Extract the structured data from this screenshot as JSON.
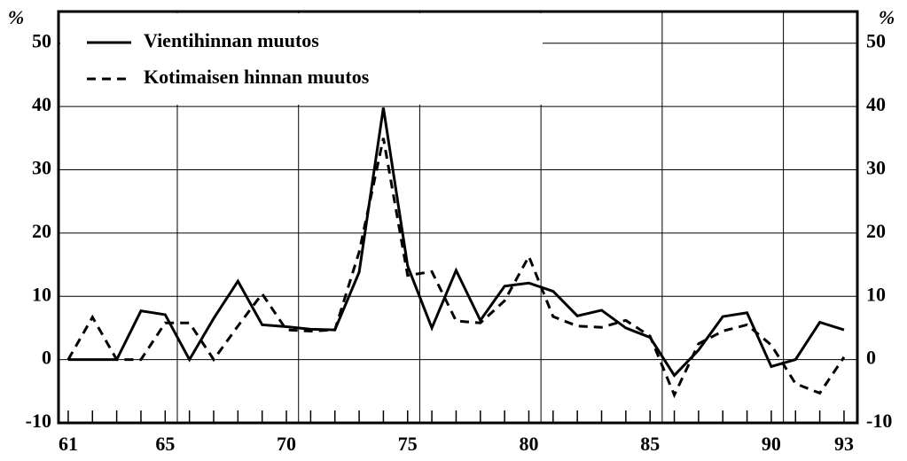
{
  "chart_data": {
    "type": "line",
    "y_unit_left": "%",
    "y_unit_right": "%",
    "x": [
      61,
      62,
      63,
      64,
      65,
      66,
      67,
      68,
      69,
      70,
      71,
      72,
      73,
      74,
      75,
      76,
      77,
      78,
      79,
      80,
      81,
      82,
      83,
      84,
      85,
      86,
      87,
      88,
      89,
      90,
      91,
      92,
      93
    ],
    "series": [
      {
        "name": "Vientihinnan muutos",
        "color": "#000000",
        "dash": "solid",
        "values": [
          0,
          0,
          0,
          7.7,
          7.1,
          0,
          6.5,
          12.4,
          5.5,
          5.2,
          4.8,
          4.7,
          13.8,
          39.8,
          14.8,
          5,
          14.1,
          6.2,
          11.6,
          12.1,
          10.8,
          6.9,
          7.8,
          5,
          3.5,
          -2.5,
          1.5,
          6.8,
          7.4,
          -1.1,
          0,
          5.9,
          4.7
        ]
      },
      {
        "name": "Kotimaisen hinnan muutos",
        "color": "#000000",
        "dash": "dashed",
        "values": [
          0,
          6.7,
          0,
          0,
          5.8,
          5.8,
          0,
          5.3,
          10.4,
          4.7,
          4.5,
          4.7,
          17,
          35,
          13.3,
          13.9,
          6.1,
          5.8,
          9.3,
          16.3,
          6.8,
          5.3,
          5.1,
          6.2,
          3.7,
          -5.6,
          2.5,
          4.5,
          5.5,
          2.3,
          -3.8,
          -5.3,
          0.4
        ]
      }
    ],
    "xlim": [
      60.6,
      93.55
    ],
    "xticks": [
      61,
      65,
      70,
      75,
      80,
      85,
      90,
      93
    ],
    "xminor": [
      61,
      62,
      63,
      64,
      65,
      66,
      67,
      68,
      69,
      70,
      71,
      72,
      73,
      74,
      75,
      76,
      77,
      78,
      79,
      80,
      81,
      82,
      83,
      84,
      85,
      86,
      87,
      88,
      89,
      90,
      91,
      92,
      93
    ],
    "xgrid": [
      65.5,
      70.5,
      75.5,
      80.5,
      85.5,
      90.5
    ],
    "ylim": [
      -10,
      55
    ],
    "yticks": [
      -10,
      0,
      10,
      20,
      30,
      40,
      50
    ],
    "y2lim": [
      -10,
      55
    ],
    "y2ticks": [
      -10,
      0,
      10,
      20,
      30,
      40,
      50
    ],
    "grid": true,
    "legend": "upper left"
  }
}
